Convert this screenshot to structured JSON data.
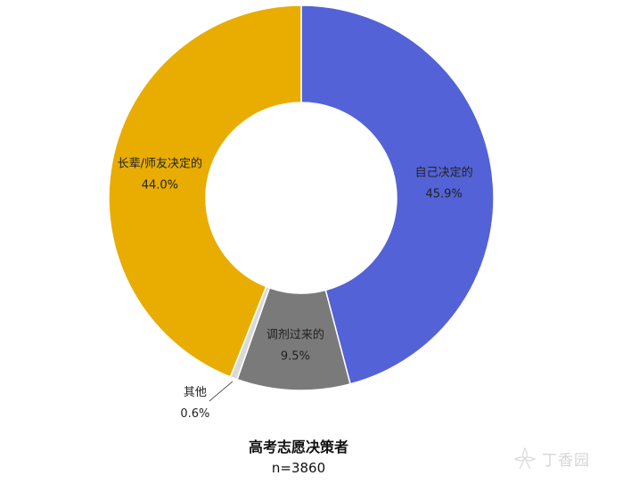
{
  "chart_data": {
    "type": "pie",
    "donut": true,
    "title": "高考志愿决策者",
    "subtitle": "n=3860",
    "slices": [
      {
        "label": "自己决定的",
        "value": 45.9,
        "display": "45.9%",
        "color": "#5362d6"
      },
      {
        "label": "调剂过来的",
        "value": 9.5,
        "display": "9.5%",
        "color": "#7a7a7a"
      },
      {
        "label": "其他",
        "value": 0.6,
        "display": "0.6%",
        "color": "#d9d9d9"
      },
      {
        "label": "长辈/师友决定的",
        "value": 44.0,
        "display": "44.0%",
        "color": "#e8ad00"
      }
    ]
  },
  "watermark": {
    "text": "丁香园"
  }
}
